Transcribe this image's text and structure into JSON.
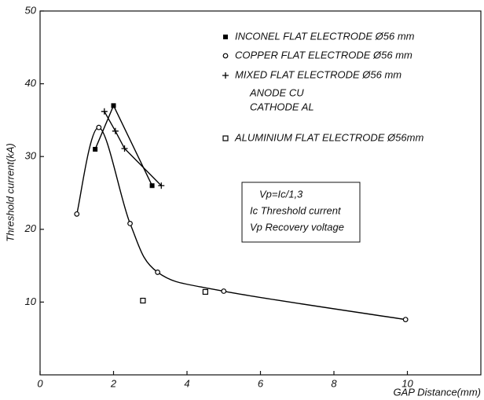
{
  "chart_data": {
    "type": "scatter",
    "xlabel": "GAP Distance(mm)",
    "ylabel": "Threshold current(kA)",
    "xlim": [
      0,
      12
    ],
    "ylim": [
      0,
      50
    ],
    "xticks": [
      0,
      2,
      4,
      6,
      8,
      10
    ],
    "yticks": [
      10,
      20,
      30,
      40,
      50
    ],
    "series": [
      {
        "name": "INCONEL FLAT ELECTRODE Ø56 mm",
        "color": "#000000",
        "marker": "square-filled",
        "line": "straight",
        "x": [
          1.5,
          2.0,
          3.05
        ],
        "values": [
          31,
          37,
          26
        ]
      },
      {
        "name": "COPPER FLAT ELECTRODE Ø56 mm",
        "color": "#000000",
        "marker": "circle-open",
        "line": "smooth",
        "x": [
          1.0,
          1.6,
          2.45,
          3.2,
          5.0,
          9.95
        ],
        "values": [
          22.1,
          34,
          20.8,
          14.1,
          11.5,
          7.6
        ]
      },
      {
        "name": "MIXED FLAT ELECTRODE Ø56 mm",
        "color": "#000000",
        "marker": "plus",
        "line": "straight",
        "x": [
          1.75,
          2.05,
          2.3,
          3.3
        ],
        "values": [
          36.2,
          33.5,
          31.1,
          26
        ]
      },
      {
        "name": "ALUMINIUM FLAT ELECTRODE Ø56mm",
        "color": "#000000",
        "marker": "square-open",
        "line": "none",
        "x": [
          2.8,
          4.5
        ],
        "values": [
          10.2,
          11.4
        ]
      }
    ],
    "legend_notes": [
      "ANODE      CU",
      "CATHODE     AL"
    ],
    "annotation": [
      "Vp=Ic/1,3",
      "Ic   Threshold current",
      "Vp   Recovery voltage"
    ]
  }
}
